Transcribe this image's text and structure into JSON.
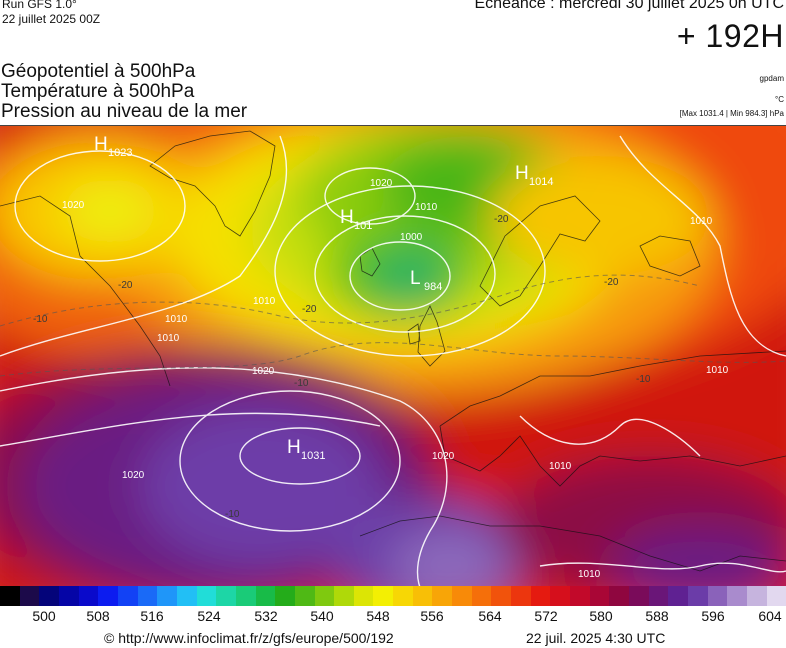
{
  "header": {
    "run": "Run GFS 1.0°",
    "run_date": "22 juillet 2025 00Z",
    "echeance": "Echéance : mercredi 30 juillet 2025 0h UTC",
    "forecast_hour": "+ 192H"
  },
  "parameters": [
    "Géopotentiel à 500hPa",
    "Température à 500hPa",
    "Pression au niveau de la mer"
  ],
  "units": {
    "geopotential": "gpdam",
    "temperature": "°C",
    "pressure_range": "[Max 1031.4 | Min 984.3] hPa"
  },
  "map": {
    "pressure_centers": [
      {
        "type": "H",
        "value": "1023"
      },
      {
        "type": "H",
        "value": "1014"
      },
      {
        "type": "H",
        "value": "101"
      },
      {
        "type": "L",
        "value": "984"
      },
      {
        "type": "H",
        "value": "1031"
      }
    ],
    "isobar_labels": [
      "1020",
      "1020",
      "1010",
      "1000",
      "1010",
      "1010",
      "1010",
      "1020",
      "1020",
      "1020",
      "1010",
      "1010",
      "1010",
      "1010"
    ],
    "temperature_labels": [
      "-20",
      "-20",
      "-20",
      "-20",
      "-10",
      "-10",
      "-10",
      "-10"
    ]
  },
  "color_scale": {
    "colors": [
      "#000000",
      "#1c0a4a",
      "#04047a",
      "#0505a6",
      "#0a0acb",
      "#0c1cf0",
      "#1242f5",
      "#1a6af7",
      "#1f96f9",
      "#22bff5",
      "#21ddd8",
      "#1dd6a6",
      "#1acb78",
      "#18bb48",
      "#24ac1a",
      "#4fb915",
      "#7fc90f",
      "#afd909",
      "#dce505",
      "#f3ef03",
      "#f7d705",
      "#f8bf06",
      "#f8a507",
      "#f88a08",
      "#f56f0a",
      "#f1530c",
      "#ec360e",
      "#e51a10",
      "#d60f1c",
      "#c2092a",
      "#a90636",
      "#8f063f",
      "#7a0b5a",
      "#6a1678",
      "#5f2192",
      "#6b3ca8",
      "#8a62ba",
      "#a98bcd",
      "#c6b4de",
      "#e2d8ef"
    ],
    "ticks": [
      "500",
      "508",
      "516",
      "524",
      "532",
      "540",
      "548",
      "556",
      "564",
      "572",
      "580",
      "588",
      "596",
      "604"
    ]
  },
  "footer": {
    "credit": "© http://www.infoclimat.fr/z/gfs/europe/500/192",
    "timestamp": "22 juil. 2025  4:30 UTC"
  }
}
